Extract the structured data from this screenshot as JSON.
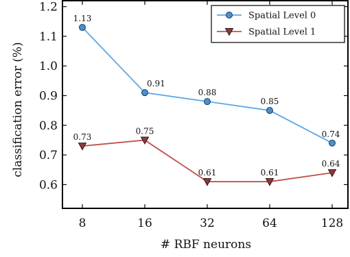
{
  "chart_data": {
    "type": "line",
    "title": "",
    "xlabel": "# RBF neurons",
    "ylabel": "classification error (%)",
    "categories": [
      "8",
      "16",
      "32",
      "64",
      "128"
    ],
    "ylim": [
      0.52,
      1.22
    ],
    "yticks": [
      "0.6",
      "0.7",
      "0.8",
      "0.9",
      "1.0",
      "1.1",
      "1.2"
    ],
    "grid": false,
    "legend_position": "top-right",
    "series": [
      {
        "name": "Spatial Level 0",
        "values": [
          1.13,
          0.91,
          0.88,
          0.85,
          0.74
        ],
        "labels": [
          "1.13",
          "0.91",
          "0.88",
          "0.85",
          "0.74"
        ],
        "color": "#5aa8e8",
        "marker": "circle",
        "marker_fill": "#4a90d0"
      },
      {
        "name": "Spatial Level 1",
        "values": [
          0.73,
          0.75,
          0.61,
          0.61,
          0.64
        ],
        "labels": [
          "0.73",
          "0.75",
          "0.61",
          "0.61",
          "0.64"
        ],
        "color": "#c0504d",
        "marker": "triangle-down",
        "marker_fill": "#8b3a3a"
      }
    ]
  }
}
